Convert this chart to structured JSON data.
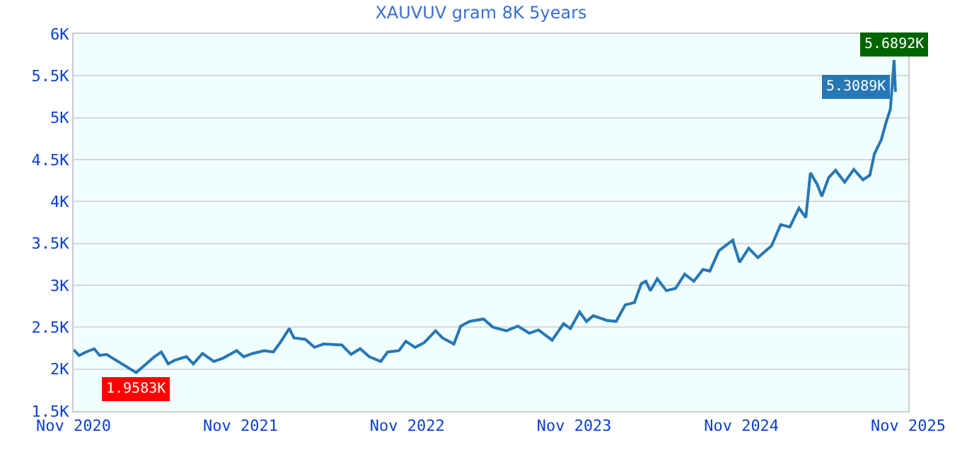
{
  "chart_data": {
    "type": "line",
    "title": "XAUVUV gram 8K 5years",
    "x": [
      "2020-11-01",
      "2020-11-13",
      "2020-11-28",
      "2020-12-16",
      "2020-12-28",
      "2021-01-12",
      "2021-03-18",
      "2021-04-27",
      "2021-05-12",
      "2021-05-27",
      "2021-06-11",
      "2021-07-06",
      "2021-07-21",
      "2021-08-10",
      "2021-09-04",
      "2021-09-24",
      "2021-10-24",
      "2021-11-08",
      "2021-11-28",
      "2021-12-23",
      "2022-01-12",
      "2022-01-27",
      "2022-02-16",
      "2022-02-26",
      "2022-03-23",
      "2022-04-12",
      "2022-05-02",
      "2022-06-11",
      "2022-07-01",
      "2022-07-21",
      "2022-08-10",
      "2022-09-04",
      "2022-09-19",
      "2022-10-14",
      "2022-10-29",
      "2022-11-18",
      "2022-12-08",
      "2023-01-02",
      "2023-01-17",
      "2023-02-11",
      "2023-02-26",
      "2023-03-18",
      "2023-04-17",
      "2023-05-07",
      "2023-06-06",
      "2023-07-01",
      "2023-07-26",
      "2023-08-15",
      "2023-09-14",
      "2023-10-09",
      "2023-10-24",
      "2023-11-13",
      "2023-11-28",
      "2023-12-13",
      "2024-01-12",
      "2024-02-01",
      "2024-02-21",
      "2024-03-12",
      "2024-03-27",
      "2024-04-06",
      "2024-04-16",
      "2024-05-01",
      "2024-05-21",
      "2024-06-10",
      "2024-06-30",
      "2024-07-20",
      "2024-08-09",
      "2024-08-24",
      "2024-09-13",
      "2024-10-13",
      "2024-10-28",
      "2024-11-17",
      "2024-12-07",
      "2025-01-06",
      "2025-01-26",
      "2025-02-15",
      "2025-03-07",
      "2025-03-22",
      "2025-04-01",
      "2025-04-16",
      "2025-04-26",
      "2025-05-11",
      "2025-05-26",
      "2025-06-15",
      "2025-07-05",
      "2025-07-25",
      "2025-08-09",
      "2025-08-19",
      "2025-09-03",
      "2025-09-13",
      "2025-09-23",
      "2025-10-01",
      "2025-10-04"
    ],
    "series": [
      {
        "color": "#2777b4",
        "values": [
          2232,
          2164,
          2204,
          2243,
          2164,
          2176,
          1958.3,
          2148,
          2204,
          2063,
          2108,
          2148,
          2063,
          2187,
          2091,
          2131,
          2221,
          2148,
          2187,
          2221,
          2204,
          2316,
          2485,
          2373,
          2356,
          2260,
          2300,
          2288,
          2176,
          2243,
          2148,
          2091,
          2204,
          2221,
          2333,
          2260,
          2316,
          2457,
          2373,
          2300,
          2514,
          2570,
          2598,
          2502,
          2457,
          2514,
          2429,
          2468,
          2345,
          2542,
          2485,
          2682,
          2570,
          2637,
          2581,
          2570,
          2767,
          2795,
          3020,
          3048,
          2936,
          3077,
          2936,
          2964,
          3133,
          3048,
          3189,
          3170,
          3414,
          3538,
          3274,
          3443,
          3330,
          3471,
          3724,
          3696,
          3921,
          3809,
          4343,
          4203,
          4062,
          4287,
          4372,
          4231,
          4383,
          4259,
          4315,
          4569,
          4738,
          4935,
          5104,
          5689.2,
          5308.9
        ]
      }
    ],
    "annotations": [
      {
        "text": "1.9583K",
        "x": "2021-03-18",
        "y": 1958.3
      },
      {
        "text": "5.3089K",
        "x": "2025-10-04",
        "y": 5308.9
      },
      {
        "text": "5.6892K",
        "x": "2025-10-01",
        "y": 5689.2
      }
    ],
    "xlim": [
      "2020-11-01",
      "2025-11-01"
    ],
    "xticks": [
      {
        "value": "2020-11-01",
        "label": "Nov 2020"
      },
      {
        "value": "2021-11-01",
        "label": "Nov 2021"
      },
      {
        "value": "2022-11-01",
        "label": "Nov 2022"
      },
      {
        "value": "2023-11-01",
        "label": "Nov 2023"
      },
      {
        "value": "2024-11-01",
        "label": "Nov 2024"
      },
      {
        "value": "2025-11-01",
        "label": "Nov 2025"
      }
    ],
    "ylim": [
      1500,
      6000
    ],
    "yticks": [
      {
        "value": 1500,
        "label": "1.5K"
      },
      {
        "value": 2000,
        "label": "2K"
      },
      {
        "value": 2500,
        "label": "2.5K"
      },
      {
        "value": 3000,
        "label": "3K"
      },
      {
        "value": 3500,
        "label": "3.5K"
      },
      {
        "value": 4000,
        "label": "4K"
      },
      {
        "value": 4500,
        "label": "4.5K"
      },
      {
        "value": 5000,
        "label": "5K"
      },
      {
        "value": 5500,
        "label": "5.5K"
      },
      {
        "value": 6000,
        "label": "6K"
      }
    ],
    "grid": "y",
    "marker": "none",
    "line_style": "solid"
  }
}
